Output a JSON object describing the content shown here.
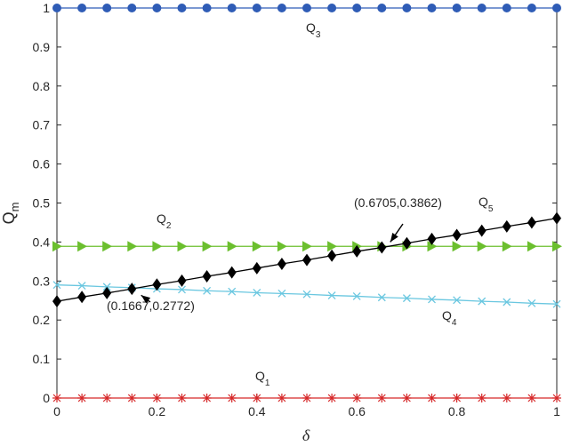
{
  "chart_data": {
    "type": "line",
    "xlabel": "δ",
    "ylabel": {
      "main": "Q",
      "sub": "m"
    },
    "xlim": [
      0,
      1
    ],
    "ylim": [
      0,
      1
    ],
    "xticks": [
      0,
      0.2,
      0.4,
      0.6,
      0.8,
      1
    ],
    "xtick_labels": [
      "0",
      "0.2",
      "0.4",
      "0.6",
      "0.8",
      "1"
    ],
    "yticks": [
      0,
      0.1,
      0.2,
      0.3,
      0.4,
      0.5,
      0.6,
      0.7,
      0.8,
      0.9,
      1
    ],
    "ytick_labels": [
      "0",
      "0.1",
      "0.2",
      "0.3",
      "0.4",
      "0.5",
      "0.6",
      "0.7",
      "0.8",
      "0.9",
      "1"
    ],
    "grid": false,
    "x": [
      0,
      0.05,
      0.1,
      0.15,
      0.2,
      0.25,
      0.3,
      0.35,
      0.4,
      0.45,
      0.5,
      0.55,
      0.6,
      0.65,
      0.7,
      0.75,
      0.8,
      0.85,
      0.9,
      0.95,
      1
    ],
    "series": [
      {
        "id": "Q1",
        "label": {
          "main": "Q",
          "sub": "1"
        },
        "color": "#d62728",
        "marker": "asterisk",
        "values": [
          0,
          0,
          0,
          0,
          0,
          0,
          0,
          0,
          0,
          0,
          0,
          0,
          0,
          0,
          0,
          0,
          0,
          0,
          0,
          0,
          0
        ]
      },
      {
        "id": "Q2",
        "label": {
          "main": "Q",
          "sub": "2"
        },
        "color": "#6bbf2e",
        "marker": "triangle-right",
        "values": [
          0.389,
          0.389,
          0.389,
          0.389,
          0.389,
          0.389,
          0.389,
          0.389,
          0.389,
          0.389,
          0.389,
          0.389,
          0.389,
          0.389,
          0.389,
          0.389,
          0.389,
          0.389,
          0.389,
          0.389,
          0.389
        ]
      },
      {
        "id": "Q3",
        "label": {
          "main": "Q",
          "sub": "3"
        },
        "color": "#2f5cb6",
        "marker": "circle",
        "values": [
          1,
          1,
          1,
          1,
          1,
          1,
          1,
          1,
          1,
          1,
          1,
          1,
          1,
          1,
          1,
          1,
          1,
          1,
          1,
          1,
          1
        ]
      },
      {
        "id": "Q4",
        "label": {
          "main": "Q",
          "sub": "4"
        },
        "color": "#6ac7e0",
        "marker": "x",
        "values": [
          0.29,
          0.288,
          0.285,
          0.283,
          0.28,
          0.278,
          0.275,
          0.273,
          0.27,
          0.268,
          0.266,
          0.263,
          0.261,
          0.258,
          0.256,
          0.253,
          0.251,
          0.248,
          0.246,
          0.243,
          0.241
        ]
      },
      {
        "id": "Q5",
        "label": {
          "main": "Q",
          "sub": "5"
        },
        "color": "#000000",
        "marker": "diamond",
        "values": [
          0.248,
          0.259,
          0.269,
          0.28,
          0.291,
          0.301,
          0.312,
          0.322,
          0.333,
          0.344,
          0.354,
          0.365,
          0.376,
          0.386,
          0.397,
          0.408,
          0.418,
          0.429,
          0.44,
          0.45,
          0.461
        ]
      }
    ],
    "annotations": [
      {
        "text": "(0.1667,0.2772)",
        "x": 0.1667,
        "y": 0.2772
      },
      {
        "text": "(0.6705,0.3862)",
        "x": 0.6705,
        "y": 0.3862
      }
    ]
  }
}
